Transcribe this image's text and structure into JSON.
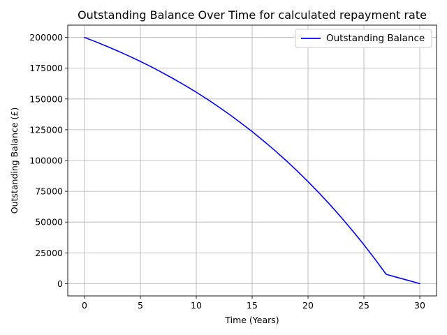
{
  "chart_data": {
    "type": "line",
    "title": "Outstanding Balance Over Time for calculated repayment rate",
    "xlabel": "Time (Years)",
    "ylabel": "Outstanding Balance (£)",
    "xlim": [
      -1.5,
      31.5
    ],
    "ylim": [
      -10000,
      210000
    ],
    "xticks": [
      0,
      5,
      10,
      15,
      20,
      25,
      30
    ],
    "yticks": [
      0,
      25000,
      50000,
      75000,
      100000,
      125000,
      150000,
      175000,
      200000
    ],
    "grid": true,
    "legend_position": "top-right",
    "series": [
      {
        "name": "Outstanding Balance",
        "color": "#0000ff",
        "x": [
          0,
          1,
          2,
          3,
          4,
          5,
          6,
          7,
          8,
          9,
          10,
          11,
          12,
          13,
          14,
          15,
          16,
          17,
          18,
          19,
          20,
          21,
          22,
          23,
          24,
          25,
          26,
          27,
          28,
          29,
          30
        ],
        "y": [
          200000,
          196500,
          192800,
          188900,
          184800,
          180500,
          176000,
          171200,
          166200,
          161000,
          155500,
          149700,
          143600,
          137200,
          130500,
          123500,
          116100,
          108400,
          100300,
          91800,
          82900,
          73500,
          63800,
          53500,
          42800,
          31600,
          19800,
          7500,
          5000,
          2500,
          0
        ]
      }
    ]
  }
}
